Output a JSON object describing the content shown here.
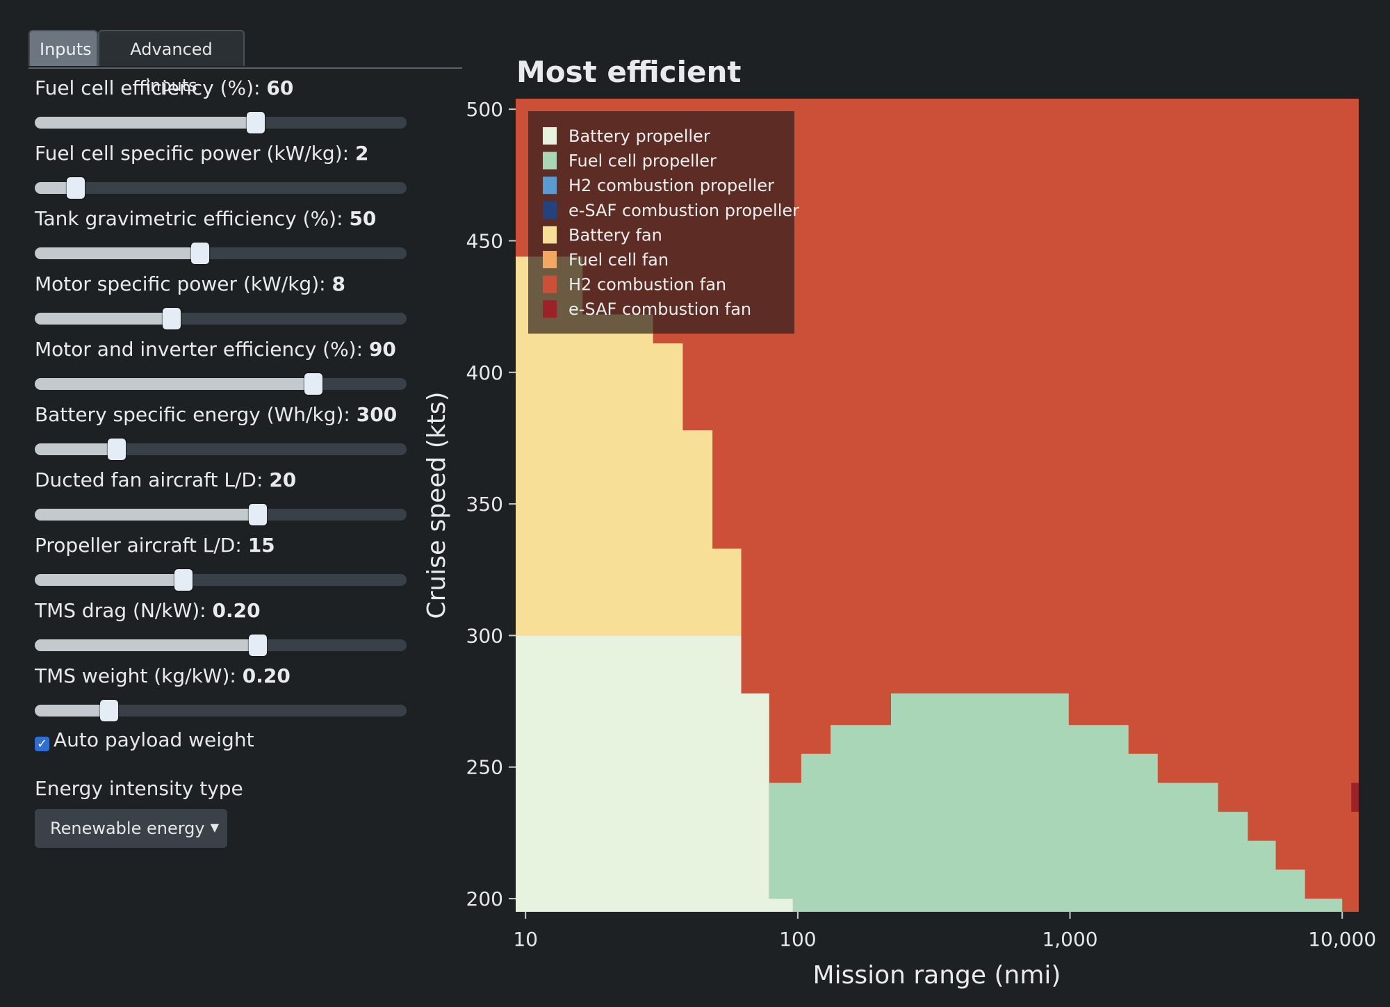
{
  "tabs": [
    {
      "label": "Inputs",
      "active": true
    },
    {
      "label": "Advanced inputs",
      "active": false
    }
  ],
  "sliders": [
    {
      "label": "Fuel cell efficiency (%): ",
      "value": "60",
      "fraction": 0.595
    },
    {
      "label": "Fuel cell specific power (kW/kg): ",
      "value": "2",
      "fraction": 0.11
    },
    {
      "label": "Tank gravimetric efficiency (%): ",
      "value": "50",
      "fraction": 0.445
    },
    {
      "label": "Motor specific power (kW/kg): ",
      "value": "8",
      "fraction": 0.368
    },
    {
      "label": "Motor and inverter efficiency (%): ",
      "value": "90",
      "fraction": 0.75
    },
    {
      "label": "Battery specific energy (Wh/kg): ",
      "value": "300",
      "fraction": 0.22
    },
    {
      "label": "Ducted fan aircraft L/D: ",
      "value": "20",
      "fraction": 0.6
    },
    {
      "label": "Propeller aircraft L/D: ",
      "value": "15",
      "fraction": 0.4
    },
    {
      "label": "TMS drag (N/kW): ",
      "value": "0.20",
      "fraction": 0.6
    },
    {
      "label": "TMS weight (kg/kW): ",
      "value": "0.20",
      "fraction": 0.2
    }
  ],
  "auto_payload": {
    "label": "Auto payload weight",
    "checked": true,
    "check_glyph": "✓"
  },
  "energy": {
    "label": "Energy intensity type",
    "value": "Renewable energy",
    "caret": "▼"
  },
  "chart_data": {
    "type": "heatmap",
    "title": "Most efficient",
    "xlabel": "Mission range (nmi)",
    "ylabel": "Cruise speed (kts)",
    "xscale": "log",
    "xlim": [
      9.2,
      11500
    ],
    "ylim": [
      195,
      504
    ],
    "xticks": [
      {
        "value": 10,
        "label": "10"
      },
      {
        "value": 100,
        "label": "100"
      },
      {
        "value": 1000,
        "label": "1,000"
      },
      {
        "value": 10000,
        "label": "10,000"
      }
    ],
    "yticks": [
      {
        "value": 200,
        "label": "200"
      },
      {
        "value": 250,
        "label": "250"
      },
      {
        "value": 300,
        "label": "300"
      },
      {
        "value": 350,
        "label": "350"
      },
      {
        "value": 400,
        "label": "400"
      },
      {
        "value": 450,
        "label": "450"
      },
      {
        "value": 500,
        "label": "500"
      }
    ],
    "legend": {
      "position": "top-left",
      "entries": [
        {
          "name": "Battery propeller",
          "color": "#e8f3df"
        },
        {
          "name": "Fuel cell propeller",
          "color": "#aad6b8"
        },
        {
          "name": "H2 combustion propeller",
          "color": "#5b9bd0"
        },
        {
          "name": "e-SAF combustion propeller",
          "color": "#24427e"
        },
        {
          "name": "Battery fan",
          "color": "#f8df97"
        },
        {
          "name": "Fuel cell fan",
          "color": "#f2a763"
        },
        {
          "name": "H2 combustion fan",
          "color": "#cc5038"
        },
        {
          "name": "e-SAF combustion fan",
          "color": "#9b2227"
        }
      ]
    },
    "background_category": "H2 combustion fan",
    "regions": [
      {
        "category": "Battery fan",
        "points": [
          [
            9.2,
            444
          ],
          [
            16.2,
            444
          ],
          [
            16.2,
            422
          ],
          [
            29.4,
            422
          ],
          [
            29.4,
            411
          ],
          [
            37.8,
            411
          ],
          [
            37.8,
            378
          ],
          [
            48.6,
            378
          ],
          [
            48.6,
            333
          ],
          [
            62,
            333
          ],
          [
            62,
            300
          ],
          [
            9.2,
            300
          ]
        ]
      },
      {
        "category": "Battery propeller",
        "points": [
          [
            9.2,
            300
          ],
          [
            62,
            300
          ],
          [
            62,
            278
          ],
          [
            78.5,
            278
          ],
          [
            78.5,
            200
          ],
          [
            96,
            200
          ],
          [
            96,
            195
          ],
          [
            9.2,
            195
          ]
        ]
      },
      {
        "category": "Fuel cell propeller",
        "points": [
          [
            78.5,
            244
          ],
          [
            103,
            244
          ],
          [
            103,
            255
          ],
          [
            132,
            255
          ],
          [
            132,
            266
          ],
          [
            220,
            266
          ],
          [
            220,
            278
          ],
          [
            990,
            278
          ],
          [
            990,
            266
          ],
          [
            1640,
            266
          ],
          [
            1640,
            255
          ],
          [
            2100,
            255
          ],
          [
            2100,
            244
          ],
          [
            3500,
            244
          ],
          [
            3500,
            233
          ],
          [
            4500,
            233
          ],
          [
            4500,
            222
          ],
          [
            5700,
            222
          ],
          [
            5700,
            211
          ],
          [
            7300,
            211
          ],
          [
            7300,
            200
          ],
          [
            10000,
            200
          ],
          [
            10000,
            195
          ],
          [
            96,
            195
          ],
          [
            96,
            200
          ],
          [
            78.5,
            200
          ]
        ]
      },
      {
        "category": "e-SAF combustion fan",
        "points": [
          [
            10800,
            244
          ],
          [
            11500,
            244
          ],
          [
            11500,
            233
          ],
          [
            10800,
            233
          ]
        ]
      }
    ]
  }
}
